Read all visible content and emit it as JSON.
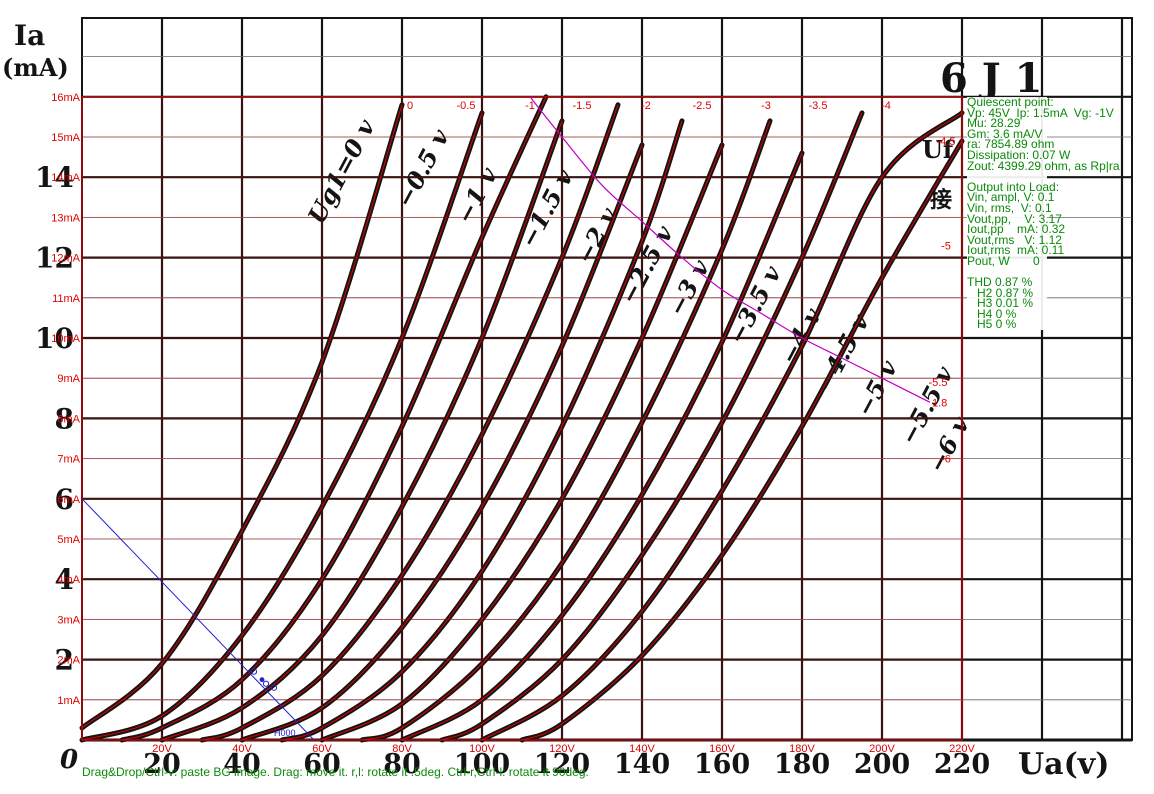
{
  "background_image": {
    "title": "6 J 1",
    "y_label_symbol": "Ia",
    "y_label_unit": "(mA)",
    "x_label": "Ua(v)",
    "corner_tag": "Uf",
    "corner_text": "接",
    "origin_label": "0",
    "y_ticks": [
      "2",
      "4",
      "6",
      "8",
      "10",
      "12",
      "14"
    ],
    "x_ticks": [
      "20",
      "40",
      "60",
      "80",
      "100",
      "120",
      "140",
      "160",
      "180",
      "200",
      "220"
    ],
    "curve_labels": [
      {
        "text": "Ug1=0 v",
        "vg": 0,
        "va": 60,
        "ia": 12.8,
        "rot": -62
      },
      {
        "text": "−0.5 v",
        "vg": -0.5,
        "va": 82,
        "ia": 13.2,
        "rot": -62
      },
      {
        "text": "−1 v",
        "vg": -1,
        "va": 97,
        "ia": 12.8,
        "rot": -62
      },
      {
        "text": "−1.5 v",
        "vg": -1.5,
        "va": 113,
        "ia": 12.2,
        "rot": -62
      },
      {
        "text": "−2 v",
        "vg": -2,
        "va": 127,
        "ia": 11.8,
        "rot": -62
      },
      {
        "text": "−2.5 v",
        "vg": -2.5,
        "va": 138,
        "ia": 10.8,
        "rot": -62
      },
      {
        "text": "−3 v",
        "vg": -3,
        "va": 150,
        "ia": 10.5,
        "rot": -62
      },
      {
        "text": "−3.5 v",
        "vg": -3.5,
        "va": 165,
        "ia": 9.8,
        "rot": -62
      },
      {
        "text": "−4 v",
        "vg": -4,
        "va": 178,
        "ia": 9.3,
        "rot": -62
      },
      {
        "text": "−4.5 v",
        "vg": -4.5,
        "va": 187,
        "ia": 8.6,
        "rot": -62
      },
      {
        "text": "−5 v",
        "vg": -5,
        "va": 197,
        "ia": 8.0,
        "rot": -62
      },
      {
        "text": "−5.5 v",
        "vg": -5.5,
        "va": 208,
        "ia": 7.3,
        "rot": -62
      },
      {
        "text": "−6 v",
        "vg": -6,
        "va": 215,
        "ia": 6.6,
        "rot": -62
      }
    ]
  },
  "chart_data": {
    "type": "line",
    "title": "6 J 1",
    "xlabel": "Ua(v)",
    "ylabel": "Ia (mA)",
    "xlim": [
      0,
      220
    ],
    "ylim": [
      0,
      16
    ],
    "grid": true,
    "grid_step_x": 20,
    "grid_step_y": 1,
    "overlay_y_ticks": [
      "1mA",
      "2mA",
      "3mA",
      "4mA",
      "5mA",
      "6mA",
      "7mA",
      "8mA",
      "9mA",
      "10mA",
      "11mA",
      "12mA",
      "13mA",
      "14mA",
      "15mA",
      "16mA"
    ],
    "overlay_x_ticks": [
      "20V",
      "40V",
      "60V",
      "80V",
      "100V",
      "120V",
      "140V",
      "160V",
      "180V",
      "200V",
      "220V"
    ],
    "overlay_x_tick_values": [
      20,
      40,
      60,
      80,
      100,
      120,
      140,
      160,
      180,
      200,
      220
    ],
    "series": [
      {
        "name": "0",
        "vg": 0,
        "points": [
          [
            0,
            0.3
          ],
          [
            20,
            1.9
          ],
          [
            40,
            5.2
          ],
          [
            60,
            9.4
          ],
          [
            80,
            15.8
          ]
        ]
      },
      {
        "name": "-0.5",
        "vg": -0.5,
        "points": [
          [
            0,
            0
          ],
          [
            20,
            0.6
          ],
          [
            40,
            2.6
          ],
          [
            60,
            5.8
          ],
          [
            80,
            10.0
          ],
          [
            100,
            15.6
          ]
        ]
      },
      {
        "name": "-1",
        "vg": -1,
        "points": [
          [
            10,
            0
          ],
          [
            20,
            0.3
          ],
          [
            40,
            1.5
          ],
          [
            60,
            4.0
          ],
          [
            80,
            7.8
          ],
          [
            100,
            12.5
          ],
          [
            116,
            16.0
          ]
        ]
      },
      {
        "name": "-1.5",
        "vg": -1.5,
        "points": [
          [
            20,
            0
          ],
          [
            40,
            0.8
          ],
          [
            60,
            2.6
          ],
          [
            80,
            5.8
          ],
          [
            100,
            10.0
          ],
          [
            120,
            15.4
          ]
        ]
      },
      {
        "name": "-2",
        "vg": -2,
        "points": [
          [
            30,
            0
          ],
          [
            40,
            0.3
          ],
          [
            60,
            1.6
          ],
          [
            80,
            4.1
          ],
          [
            100,
            7.6
          ],
          [
            120,
            12.0
          ],
          [
            134,
            15.8
          ]
        ]
      },
      {
        "name": "-2.5",
        "vg": -2.5,
        "points": [
          [
            40,
            0
          ],
          [
            60,
            0.8
          ],
          [
            80,
            2.8
          ],
          [
            100,
            5.8
          ],
          [
            120,
            9.8
          ],
          [
            140,
            14.8
          ]
        ]
      },
      {
        "name": "-3",
        "vg": -3,
        "points": [
          [
            50,
            0
          ],
          [
            60,
            0.3
          ],
          [
            80,
            1.7
          ],
          [
            100,
            4.2
          ],
          [
            120,
            7.8
          ],
          [
            140,
            12.4
          ],
          [
            150,
            15.4
          ]
        ]
      },
      {
        "name": "-3.5",
        "vg": -3.5,
        "points": [
          [
            60,
            0
          ],
          [
            80,
            0.9
          ],
          [
            100,
            3.0
          ],
          [
            120,
            6.0
          ],
          [
            140,
            10.0
          ],
          [
            160,
            14.8
          ]
        ]
      },
      {
        "name": "-4",
        "vg": -4,
        "points": [
          [
            70,
            0
          ],
          [
            80,
            0.3
          ],
          [
            100,
            1.9
          ],
          [
            120,
            4.4
          ],
          [
            140,
            7.9
          ],
          [
            160,
            12.2
          ],
          [
            172,
            15.4
          ]
        ]
      },
      {
        "name": "-4.5",
        "vg": -4.5,
        "points": [
          [
            80,
            0
          ],
          [
            100,
            1.0
          ],
          [
            120,
            3.1
          ],
          [
            140,
            6.1
          ],
          [
            160,
            9.9
          ],
          [
            180,
            14.6
          ]
        ]
      },
      {
        "name": "-5",
        "vg": -5,
        "points": [
          [
            90,
            0
          ],
          [
            100,
            0.4
          ],
          [
            120,
            2.0
          ],
          [
            140,
            4.6
          ],
          [
            160,
            7.9
          ],
          [
            180,
            12.0
          ],
          [
            195,
            15.6
          ]
        ]
      },
      {
        "name": "-5.5",
        "vg": -5.5,
        "points": [
          [
            100,
            0
          ],
          [
            120,
            1.1
          ],
          [
            140,
            3.2
          ],
          [
            160,
            6.2
          ],
          [
            180,
            9.8
          ],
          [
            200,
            14.0
          ],
          [
            220,
            15.6
          ]
        ]
      },
      {
        "name": "-6",
        "vg": -6,
        "points": [
          [
            110,
            0
          ],
          [
            120,
            0.4
          ],
          [
            140,
            2.1
          ],
          [
            160,
            4.6
          ],
          [
            180,
            7.8
          ],
          [
            200,
            11.5
          ],
          [
            220,
            14.9
          ]
        ]
      }
    ],
    "series_labels": [
      {
        "text": "0",
        "x": 82,
        "y": 15.9
      },
      {
        "text": "-0.5",
        "x": 96,
        "y": 15.9
      },
      {
        "text": "-1",
        "x": 112,
        "y": 15.9
      },
      {
        "text": "-1.5",
        "x": 125,
        "y": 15.9
      },
      {
        "text": "-2",
        "x": 141,
        "y": 15.9
      },
      {
        "text": "-2.5",
        "x": 155,
        "y": 15.9
      },
      {
        "text": "-3",
        "x": 171,
        "y": 15.9
      },
      {
        "text": "-3.5",
        "x": 184,
        "y": 15.9
      },
      {
        "text": "-4",
        "x": 201,
        "y": 15.9
      },
      {
        "text": "-4.5",
        "x": 216,
        "y": 15.0
      },
      {
        "text": "-5",
        "x": 216,
        "y": 12.4
      },
      {
        "text": "-5.5",
        "x": 214,
        "y": 9.0
      },
      {
        "text": "-6",
        "x": 216,
        "y": 7.1
      }
    ],
    "dissipation_curve": {
      "label": "1.8",
      "points": [
        [
          112,
          16.0
        ],
        [
          120,
          15.0
        ],
        [
          130,
          13.8
        ],
        [
          140,
          12.9
        ],
        [
          150,
          12.0
        ],
        [
          160,
          11.2
        ],
        [
          170,
          10.6
        ],
        [
          180,
          10.0
        ],
        [
          190,
          9.5
        ],
        [
          200,
          9.0
        ],
        [
          212,
          8.4
        ]
      ]
    },
    "load_line": {
      "points": [
        [
          0,
          6.0
        ],
        [
          58,
          0
        ]
      ],
      "quiescent": [
        45,
        1.5
      ],
      "swing_points": [
        [
          43,
          1.7
        ],
        [
          46,
          1.4
        ],
        [
          48,
          1.3
        ]
      ],
      "marker_label": "H000"
    }
  },
  "info_panel": {
    "lines": [
      "Quiescent point:",
      "Vp: 45V  Ip: 1.5mA  Vg: -1V",
      "Mu: 28.29",
      "Gm: 3.6 mA/V",
      "ra: 7854.89 ohm",
      "Dissipation: 0.07 W",
      "Zout: 4399.29 ohm, as Rp|ra",
      "",
      "Output into Load:",
      "Vin, ampl, V: 0.1",
      "Vin, rms,  V: 0.1",
      "Vout,pp,    V: 3.17",
      "Iout,pp    mA: 0.32",
      "Vout,rms   V: 1.12",
      "Iout,rms  mA: 0.11",
      "Pout, W       0",
      "",
      "THD 0.87 %",
      "   H2 0.87 %",
      "   H3 0.01 %",
      "   H4 0 %",
      "   H5 0 %"
    ]
  },
  "status_bar": {
    "text": "Drag&Drop/Ctrl-v: paste BG image. Drag: move it. r,l: rotate it .5deg. Ctrl-r,Ctrl-l: rotate it 90deg."
  },
  "colors": {
    "overlay": "#e00000",
    "bg_ink": "#141414",
    "load_line": "#2020d0",
    "dissipation": "#c000c0",
    "info_text": "#0a8a0a"
  }
}
